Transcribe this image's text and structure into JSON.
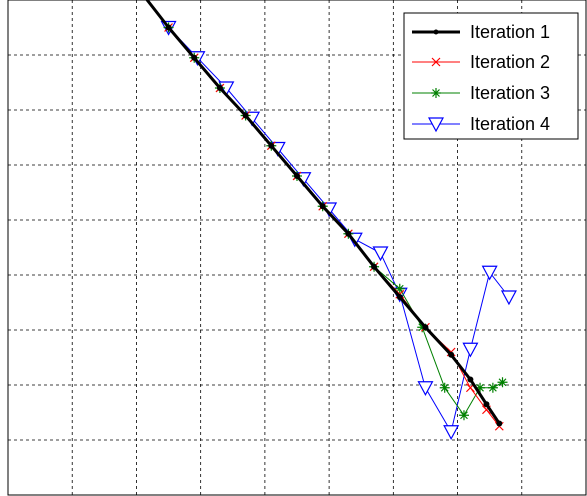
{
  "chart_data": {
    "type": "line",
    "title": "",
    "xlabel": "",
    "ylabel": "",
    "xlim": [
      0,
      9
    ],
    "ylim": [
      0,
      9
    ],
    "grid": true,
    "legend_position": "top-right",
    "series": [
      {
        "name": "Iteration 1",
        "color": "#000000",
        "marker": "dot",
        "line_width": 3,
        "x": [
          2.1,
          2.5,
          2.9,
          3.3,
          3.7,
          4.1,
          4.5,
          4.9,
          5.3,
          5.7,
          6.1,
          6.5,
          6.9,
          7.2,
          7.45,
          7.65
        ],
        "y": [
          9.1,
          8.5,
          7.95,
          7.4,
          6.9,
          6.35,
          5.8,
          5.25,
          4.75,
          4.15,
          3.6,
          3.05,
          2.55,
          2.1,
          1.65,
          1.3
        ]
      },
      {
        "name": "Iteration 2",
        "color": "#ff0000",
        "marker": "x",
        "line_width": 1,
        "x": [
          2.5,
          2.9,
          3.3,
          3.7,
          4.1,
          4.5,
          4.9,
          5.3,
          5.7,
          6.1,
          6.5,
          6.9,
          7.2,
          7.45,
          7.65
        ],
        "y": [
          8.5,
          7.95,
          7.4,
          6.9,
          6.35,
          5.8,
          5.25,
          4.75,
          4.15,
          3.65,
          3.05,
          2.6,
          1.95,
          1.55,
          1.25
        ]
      },
      {
        "name": "Iteration 3",
        "color": "#008000",
        "marker": "asterisk",
        "line_width": 1,
        "x": [
          2.5,
          2.9,
          3.3,
          3.7,
          4.1,
          4.5,
          4.9,
          5.3,
          5.7,
          6.1,
          6.45,
          6.8,
          7.1,
          7.35,
          7.55,
          7.7
        ],
        "y": [
          8.5,
          7.95,
          7.4,
          6.9,
          6.35,
          5.8,
          5.25,
          4.75,
          4.15,
          3.75,
          3.05,
          1.95,
          1.45,
          1.95,
          1.95,
          2.05
        ]
      },
      {
        "name": "Iteration 4",
        "color": "#0000ff",
        "marker": "triangle-down",
        "line_width": 1,
        "x": [
          2.5,
          2.95,
          3.4,
          3.8,
          4.2,
          4.6,
          5.0,
          5.4,
          5.8,
          6.1,
          6.5,
          6.9,
          7.2,
          7.5,
          7.8
        ],
        "y": [
          8.5,
          7.95,
          7.4,
          6.85,
          6.3,
          5.75,
          5.2,
          4.65,
          4.4,
          3.65,
          1.95,
          1.15,
          2.65,
          4.05,
          3.6
        ]
      }
    ]
  }
}
